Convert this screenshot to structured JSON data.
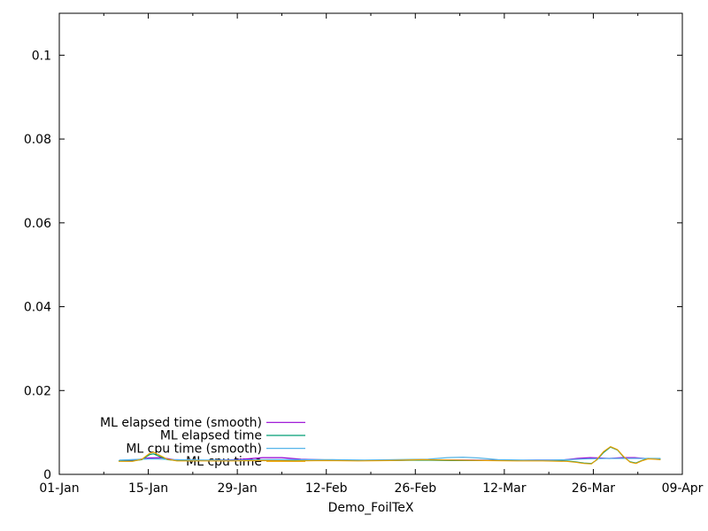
{
  "chart_data": {
    "type": "line",
    "title": "",
    "xlabel": "Demo_FoilTeX",
    "ylabel": "",
    "x_axis": {
      "unit": "date",
      "start_label": "01-Jan",
      "end_label": "09-Apr",
      "xlim_days": [
        0,
        98
      ],
      "major_tick_days": [
        0,
        14,
        28,
        42,
        56,
        70,
        84,
        98
      ],
      "major_tick_labels": [
        "01-Jan",
        "15-Jan",
        "29-Jan",
        "12-Feb",
        "26-Feb",
        "12-Mar",
        "26-Mar",
        "09-Apr"
      ],
      "minor_tick_days": [
        7,
        21,
        35,
        49,
        63,
        77,
        91
      ]
    },
    "y_axis": {
      "ylim": [
        0,
        0.11
      ],
      "major_ticks": [
        0,
        0.02,
        0.04,
        0.06,
        0.08,
        0.1
      ],
      "major_tick_labels": [
        "0",
        "0.02",
        "0.04",
        "0.06",
        "0.08",
        "0.1"
      ]
    },
    "grid": false,
    "legend_position": "inside-bottom-left",
    "series": [
      {
        "name": "ML elapsed time (smooth)",
        "color": "#9400d3",
        "points": [
          [
            9.5,
            0.0033
          ],
          [
            12,
            0.0034
          ],
          [
            14,
            0.0039
          ],
          [
            16,
            0.004
          ],
          [
            18,
            0.0035
          ],
          [
            22,
            0.0033
          ],
          [
            28,
            0.0035
          ],
          [
            32,
            0.004
          ],
          [
            35,
            0.004
          ],
          [
            38,
            0.0036
          ],
          [
            43,
            0.0034
          ],
          [
            49,
            0.0033
          ],
          [
            55,
            0.0034
          ],
          [
            60,
            0.0034
          ],
          [
            65,
            0.0034
          ],
          [
            70,
            0.0033
          ],
          [
            75,
            0.0034
          ],
          [
            79,
            0.0034
          ],
          [
            81.5,
            0.0038
          ],
          [
            83.5,
            0.004
          ],
          [
            85,
            0.0039
          ],
          [
            86.5,
            0.0038
          ],
          [
            88.5,
            0.004
          ],
          [
            90.5,
            0.004
          ],
          [
            92,
            0.0038
          ],
          [
            94.4,
            0.0037
          ]
        ]
      },
      {
        "name": "ML elapsed time",
        "color": "#009e73",
        "points": [
          [
            9.4,
            0.0032
          ],
          [
            11.5,
            0.0032
          ],
          [
            13,
            0.0035
          ],
          [
            14.2,
            0.0047
          ],
          [
            14.8,
            0.0049
          ],
          [
            15.7,
            0.0043
          ],
          [
            17,
            0.0035
          ],
          [
            18.5,
            0.0033
          ],
          [
            22,
            0.0033
          ],
          [
            27,
            0.0033
          ],
          [
            32,
            0.0034
          ],
          [
            37,
            0.0033
          ],
          [
            42,
            0.0033
          ],
          [
            47,
            0.0033
          ],
          [
            52,
            0.0033
          ],
          [
            57,
            0.0034
          ],
          [
            62,
            0.0033
          ],
          [
            67,
            0.0033
          ],
          [
            72,
            0.0033
          ],
          [
            76,
            0.0033
          ],
          [
            79.8,
            0.0032
          ],
          [
            81.2,
            0.003
          ],
          [
            82.5,
            0.0027
          ],
          [
            83.7,
            0.0026
          ],
          [
            84.6,
            0.0035
          ],
          [
            85.6,
            0.0052
          ],
          [
            86.7,
            0.0065
          ],
          [
            87.8,
            0.0058
          ],
          [
            88.8,
            0.0041
          ],
          [
            89.8,
            0.003
          ],
          [
            90.7,
            0.0027
          ],
          [
            91.6,
            0.0033
          ],
          [
            92.6,
            0.0038
          ],
          [
            93.7,
            0.0037
          ],
          [
            94.5,
            0.0036
          ]
        ]
      },
      {
        "name": "ML cpu time (smooth)",
        "color": "#56b4e9",
        "points": [
          [
            9.5,
            0.0034
          ],
          [
            13,
            0.0036
          ],
          [
            15,
            0.0037
          ],
          [
            18,
            0.0035
          ],
          [
            23,
            0.0034
          ],
          [
            28,
            0.0034
          ],
          [
            33,
            0.0035
          ],
          [
            38,
            0.0035
          ],
          [
            43,
            0.0035
          ],
          [
            48,
            0.0034
          ],
          [
            53,
            0.0035
          ],
          [
            58,
            0.0036
          ],
          [
            61,
            0.004
          ],
          [
            63.5,
            0.0041
          ],
          [
            66,
            0.0039
          ],
          [
            69,
            0.0035
          ],
          [
            73,
            0.0034
          ],
          [
            77,
            0.0034
          ],
          [
            80,
            0.0035
          ],
          [
            83,
            0.0037
          ],
          [
            86,
            0.0038
          ],
          [
            89,
            0.0038
          ],
          [
            92,
            0.0038
          ],
          [
            94.5,
            0.0038
          ]
        ]
      },
      {
        "name": "ML cpu time",
        "color": "#e69f00",
        "points": [
          [
            9.4,
            0.0031
          ],
          [
            11.5,
            0.0031
          ],
          [
            13,
            0.0036
          ],
          [
            14.2,
            0.005
          ],
          [
            14.8,
            0.0053
          ],
          [
            15.7,
            0.0046
          ],
          [
            17,
            0.0036
          ],
          [
            18.5,
            0.0032
          ],
          [
            22,
            0.0032
          ],
          [
            27,
            0.0032
          ],
          [
            32,
            0.0033
          ],
          [
            37,
            0.0032
          ],
          [
            42,
            0.0033
          ],
          [
            47,
            0.0032
          ],
          [
            52,
            0.0033
          ],
          [
            57,
            0.0035
          ],
          [
            62,
            0.0034
          ],
          [
            67,
            0.0033
          ],
          [
            72,
            0.0032
          ],
          [
            76,
            0.0032
          ],
          [
            79.8,
            0.0031
          ],
          [
            81.2,
            0.0029
          ],
          [
            82.5,
            0.0026
          ],
          [
            83.7,
            0.0025
          ],
          [
            84.6,
            0.0036
          ],
          [
            85.6,
            0.0054
          ],
          [
            86.7,
            0.0066
          ],
          [
            87.8,
            0.0059
          ],
          [
            88.8,
            0.0042
          ],
          [
            89.8,
            0.0029
          ],
          [
            90.7,
            0.0026
          ],
          [
            91.6,
            0.0032
          ],
          [
            92.6,
            0.0037
          ],
          [
            93.7,
            0.0036
          ],
          [
            94.5,
            0.0035
          ]
        ]
      }
    ],
    "colors": {
      "background": "#ffffff",
      "axis": "#000000",
      "text": "#000000"
    }
  }
}
